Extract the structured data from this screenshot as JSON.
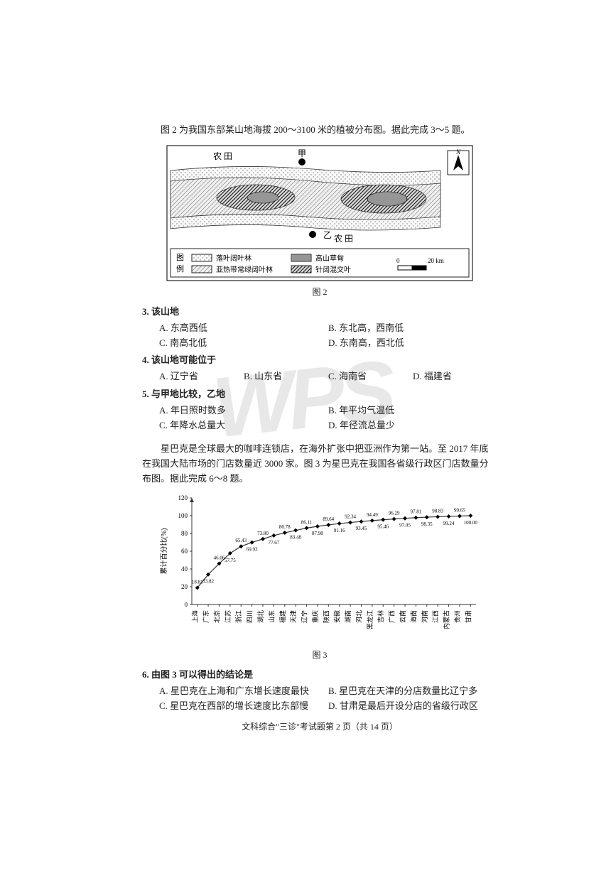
{
  "intro1": "图 2 为我国东部某山地海拔 200～3100 米的植被分布图。据此完成 3～5 题。",
  "fig2": {
    "caption": "图 2",
    "farmland": "农    田",
    "jia": "甲",
    "yi": "乙",
    "legend_label": "图例",
    "legend1": "落叶阔叶林",
    "legend2": "高山草甸",
    "legend3": "亚热带常绿阔叶林",
    "legend4": "针阔混交叶",
    "scale_zero": "0",
    "scale_dist": "20 km",
    "north": "N",
    "box_stroke": "#222222",
    "bg": "#ffffff"
  },
  "q3": {
    "stem": "3. 该山地",
    "A": "A. 东高西低",
    "B": "B. 东北高，西南低",
    "C": "C. 南高北低",
    "D": "D. 东南高，西北低"
  },
  "q4": {
    "stem": "4. 该山地可能位于",
    "A": "A. 辽宁省",
    "B": "B. 山东省",
    "C": "C. 海南省",
    "D": "D. 福建省"
  },
  "q5": {
    "stem": "5. 与甲地比较，乙地",
    "A": "A. 年日照时数多",
    "B": "B. 年平均气温低",
    "C": "C. 年降水总量大",
    "D": "D. 年径流总量少"
  },
  "intro2": "星巴克是全球最大的咖啡连锁店，在海外扩张中把亚洲作为第一站。至 2017 年底在我国大陆市场的门店数量近 3000 家。图 3 为星巴克在我国各省级行政区门店数量分布图。据此完成 6～8 题。",
  "fig3": {
    "caption": "图 3",
    "ylabel": "累计百分比(%)",
    "ylim": [
      0,
      120
    ],
    "ytick_step": 20,
    "line_color": "#333333",
    "axis_color": "#333333",
    "label_fontsize": 7,
    "categories": [
      "上海",
      "广东",
      "北京",
      "江苏",
      "浙江",
      "四川",
      "湖北",
      "山东",
      "福建",
      "天津",
      "辽宁",
      "重庆",
      "陕西",
      "安徽",
      "湖南",
      "河北",
      "黑龙江",
      "吉林",
      "广西",
      "云南",
      "海南",
      "河南",
      "江西",
      "内蒙古",
      "贵州",
      "甘肃"
    ],
    "values": [
      18.81,
      33.82,
      46.06,
      57.75,
      65.43,
      69.93,
      73.8,
      77.67,
      80.78,
      83.48,
      86.11,
      87.98,
      89.64,
      91.16,
      92.34,
      93.45,
      94.49,
      95.46,
      96.29,
      97.05,
      97.81,
      98.35,
      98.83,
      99.24,
      99.65,
      100.0
    ],
    "show_labels": [
      "18.81",
      "33.82",
      "46.06",
      "57.75",
      "65.43",
      "69.93",
      "73.80",
      "77.67",
      "80.78",
      "83.48",
      "86.11",
      "87.98",
      "89.64",
      "91.16",
      "92.34",
      "93.45",
      "94.49",
      "95.46",
      "96.29",
      "97.05",
      "97.81",
      "98.35",
      "98.83",
      "99.24",
      "99.65",
      "100.00"
    ]
  },
  "q6": {
    "stem": "6. 由图 3 可以得出的结论是",
    "A": "A. 星巴克在上海和广东增长速度最快",
    "B": "B. 星巴克在天津的分店数量比辽宁多",
    "C": "C. 星巴克在西部的增长速度比东部慢",
    "D": "D. 甘肃是最后开设分店的省级行政区"
  },
  "footer": "文科综合\"三诊\"考试题第 2 页（共 14 页）"
}
